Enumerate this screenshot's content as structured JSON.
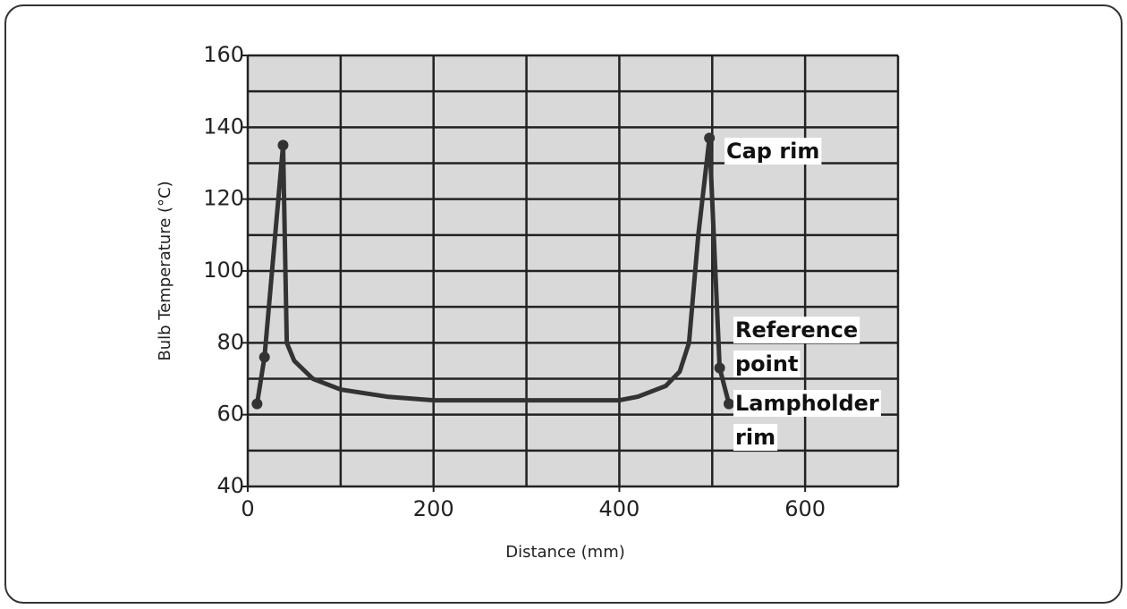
{
  "chart_data": {
    "type": "line",
    "x_label": "Distance  (mm)",
    "y_label": "Bulb Temperature (°C)",
    "xlim": [
      0,
      700
    ],
    "xticks": [
      0,
      200,
      400,
      600
    ],
    "ylim": [
      40,
      160
    ],
    "yticks": [
      40,
      60,
      80,
      100,
      120,
      140,
      160
    ],
    "x_grid": [
      0,
      100,
      200,
      300,
      400,
      500,
      600,
      700
    ],
    "y_grid": [
      40,
      50,
      60,
      70,
      80,
      90,
      100,
      110,
      120,
      130,
      140,
      150,
      160
    ],
    "grid": true,
    "color": "#333333",
    "plot_background": "#d9d9d9",
    "line": {
      "x": [
        10,
        18,
        38,
        42,
        50,
        70,
        100,
        150,
        200,
        300,
        400,
        420,
        450,
        465,
        475,
        485,
        497,
        508,
        518
      ],
      "values": [
        63,
        76,
        135,
        80,
        75,
        70,
        67,
        65,
        64,
        64,
        64,
        65,
        68,
        72,
        80,
        110,
        137,
        73,
        63
      ]
    },
    "markers": {
      "x": [
        10,
        18,
        38,
        497,
        508,
        518
      ],
      "values": [
        63,
        76,
        135,
        137,
        73,
        63
      ]
    },
    "annotations": [
      {
        "lines": [
          "Cap rim"
        ]
      },
      {
        "lines": [
          "Reference",
          "point"
        ]
      },
      {
        "lines": [
          "Lampholder",
          "rim"
        ]
      }
    ]
  }
}
